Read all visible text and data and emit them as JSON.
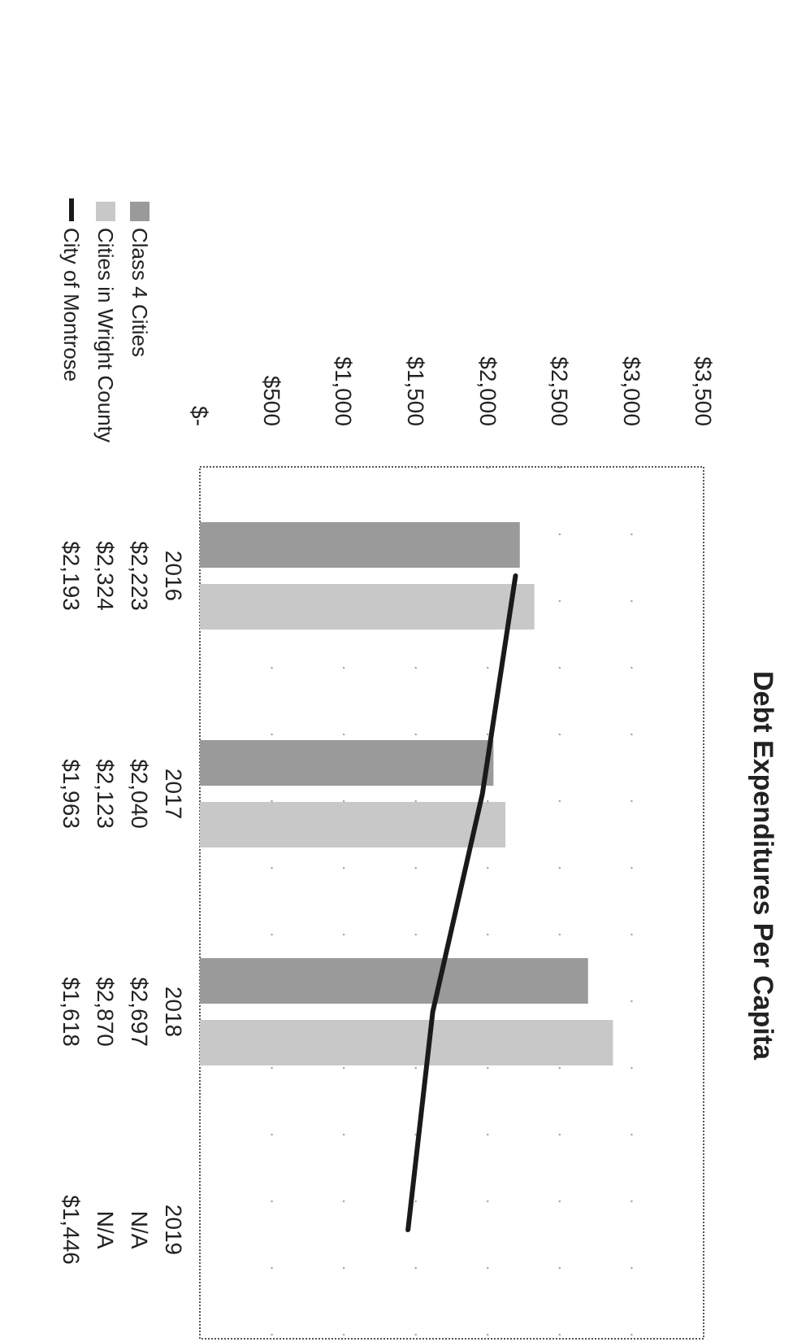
{
  "chart_data": {
    "type": "bar",
    "orientation": "horizontal",
    "title": "Debt Expenditures Per Capita",
    "categories": [
      "2016",
      "2017",
      "2018",
      "2019"
    ],
    "series": [
      {
        "name": "Class 4 Cities",
        "color": "#9a9a9a",
        "values": [
          2223,
          2040,
          2697,
          null
        ],
        "value_labels": [
          "$2,223",
          "$2,040",
          "$2,697",
          "N/A"
        ]
      },
      {
        "name": "Cities in Wright County",
        "color": "#c8c8c8",
        "values": [
          2324,
          2123,
          2870,
          null
        ],
        "value_labels": [
          "$2,324",
          "$2,123",
          "$2,870",
          "N/A"
        ]
      },
      {
        "name": "City of Montrose",
        "type": "line",
        "color": "#1a1a1a",
        "values": [
          2193,
          1963,
          1618,
          1446
        ],
        "value_labels": [
          "$2,193",
          "$1,963",
          "$1,618",
          "$1,446"
        ]
      }
    ],
    "xlim": [
      0,
      3500
    ],
    "xticks": [
      {
        "value": 0,
        "label": "$-"
      },
      {
        "value": 500,
        "label": "$500"
      },
      {
        "value": 1000,
        "label": "$1,000"
      },
      {
        "value": 1500,
        "label": "$1,500"
      },
      {
        "value": 2000,
        "label": "$2,000"
      },
      {
        "value": 2500,
        "label": "$2,500"
      },
      {
        "value": 3000,
        "label": "$3,000"
      },
      {
        "value": 3500,
        "label": "$3,500"
      }
    ],
    "grid": "x",
    "legend": "top left",
    "marker": "none",
    "line_style": "solid"
  }
}
